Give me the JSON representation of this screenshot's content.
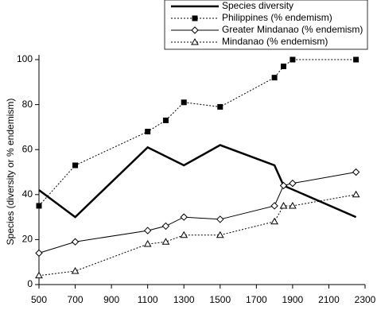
{
  "chart_data": {
    "type": "line",
    "y_label": "Species (diversity or % endemism)",
    "xlim": [
      500,
      2300
    ],
    "xticks": [
      500,
      700,
      900,
      1100,
      1300,
      1500,
      1700,
      1900,
      2100,
      2300
    ],
    "ylim": [
      0,
      100
    ],
    "yticks": [
      0,
      20,
      40,
      60,
      80,
      100
    ],
    "legend": "top-right",
    "series": [
      {
        "name": "Species diversity",
        "color": "#000000",
        "dash": "solid",
        "marker": "none",
        "width": 2.5,
        "x": [
          500,
          700,
          1100,
          1300,
          1500,
          1800,
          1850,
          2250
        ],
        "values": [
          42,
          30,
          61,
          53,
          62,
          53,
          44,
          30
        ]
      },
      {
        "name": "Philippines (% endemism)",
        "color": "#000000",
        "dash": "dotted",
        "marker": "square",
        "width": 1,
        "x": [
          500,
          700,
          1100,
          1200,
          1300,
          1500,
          1800,
          1850,
          1900,
          2250
        ],
        "values": [
          35,
          53,
          68,
          73,
          81,
          79,
          92,
          97,
          100,
          100
        ]
      },
      {
        "name": "Greater Mindanao (% endemism)",
        "color": "#000000",
        "dash": "solid",
        "marker": "diamond",
        "width": 1,
        "x": [
          500,
          700,
          1100,
          1200,
          1300,
          1500,
          1800,
          1850,
          1900,
          2250
        ],
        "values": [
          14,
          19,
          24,
          26,
          30,
          29,
          35,
          44,
          45,
          50
        ]
      },
      {
        "name": "Mindanao (% endemism)",
        "color": "#000000",
        "dash": "dotted",
        "marker": "triangle",
        "width": 1,
        "x": [
          500,
          700,
          1100,
          1200,
          1300,
          1500,
          1800,
          1850,
          1900,
          2250
        ],
        "values": [
          4,
          6,
          18,
          19,
          22,
          22,
          28,
          35,
          35,
          40
        ]
      }
    ]
  }
}
